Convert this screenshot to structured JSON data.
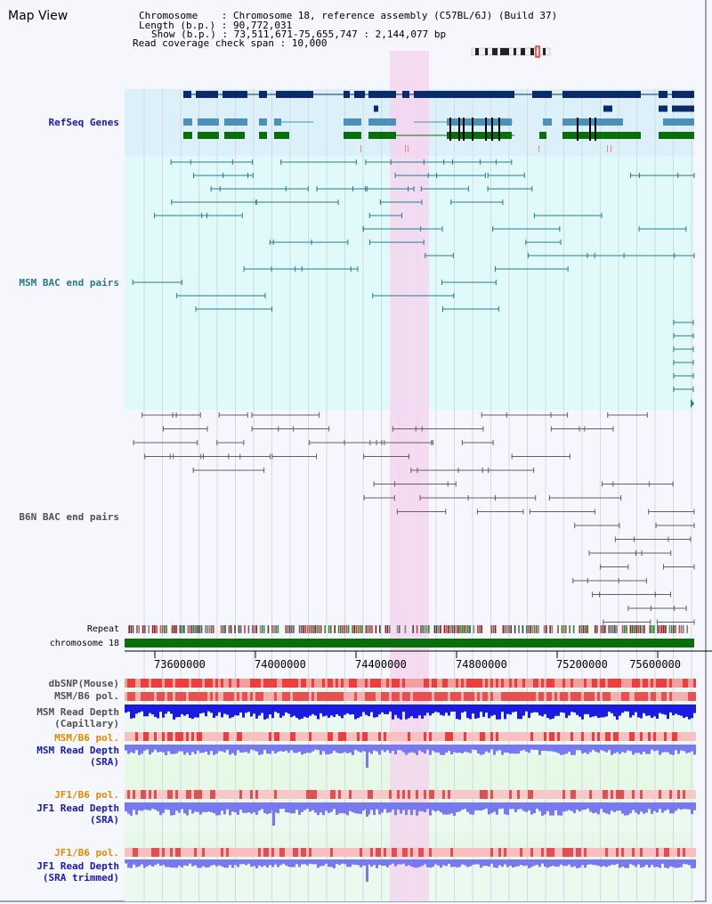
{
  "view": {
    "title": "Map View"
  },
  "info": {
    "line1": "Chromosome    : Chromosome 18, reference assembly (C57BL/6J) (Build 37)",
    "line2": "Length (b.p.) : 90,772,031",
    "line3": "Show (b.p.) : 73,511,671-75,655,747 : 2,144,077 bp",
    "line4": "Read coverage check span : 10,000"
  },
  "tracks": {
    "refseq": "RefSeq Genes",
    "msm_bac": "MSM BAC end pairs",
    "b6n_bac": "B6N BAC end pairs",
    "repeat": "Repeat",
    "chromosome": "chromosome 18",
    "dbsnp": "dbSNP(Mouse)",
    "msm_b6_pol": "MSM/B6 pol.",
    "msm_depth_cap_1": "MSM Read Depth",
    "msm_depth_cap_2": "(Capillary)",
    "msm_b6_pol_2": "MSM/B6 pol.",
    "msm_depth_sra_1": "MSM Read Depth",
    "msm_depth_sra_2": "(SRA)",
    "jf1_b6_pol": "JF1/B6 pol.",
    "jf1_depth_sra_1": "JF1 Read Depth",
    "jf1_depth_sra_2": "(SRA)",
    "jf1_b6_pol_2": "JF1/B6 pol.",
    "jf1_depth_trim_1": "JF1 Read Depth",
    "jf1_depth_trim_2": "(SRA trimmed)"
  },
  "axis": {
    "ticks": [
      "73600000",
      "74000000",
      "74400000",
      "74800000",
      "75200000",
      "75600000"
    ]
  },
  "colors": {
    "refseq_bg": "#dcf0fa",
    "track_bg": "#e0fafa",
    "highlight": "#f5d6ee",
    "gene_dark": "#0a2a6a",
    "gene_mid": "#4a90b8",
    "gene_green": "#0a6e0a",
    "msm_bac": "#2a7890",
    "b6n_bac": "#606060",
    "chromosome": "#0a6e0a",
    "depth_blue": "#1a1ae0",
    "depth_light": "#7878f0",
    "label_blue": "#1a1aaa",
    "label_orange": "#e08a00"
  }
}
